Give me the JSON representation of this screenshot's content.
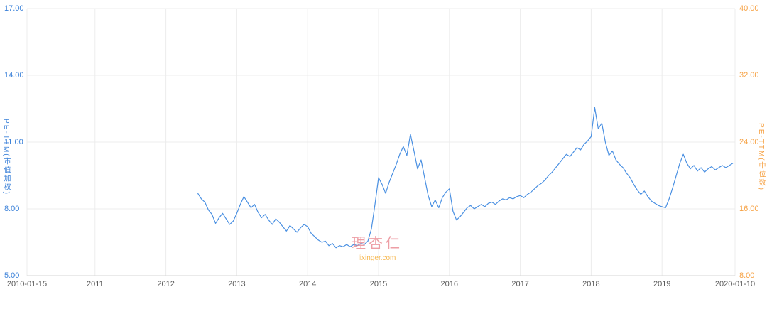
{
  "chart_data": {
    "type": "line",
    "title": "",
    "grid": true,
    "grid_color": "#ececec",
    "axis_line_color": "#d6d6d6",
    "x_tick_label_color": "#5a5a5a",
    "left_axis": {
      "label": "PE-TTM(市值加权)",
      "color": "#3c82d9",
      "min": 5,
      "max": 17,
      "tick_values": [
        17,
        14,
        11,
        8,
        5
      ],
      "tick_labels": [
        "17.00",
        "14.00",
        "11.00",
        "8.00",
        "5.00"
      ]
    },
    "right_axis": {
      "label": "PE-TTM(中位数)",
      "color": "#f6a143",
      "min": 8,
      "max": 40,
      "tick_values": [
        40,
        32,
        24,
        16,
        8
      ],
      "tick_labels": [
        "40.00",
        "32.00",
        "24.00",
        "16.00",
        "8.00"
      ]
    },
    "x_axis": {
      "min": 2010.04,
      "max": 2020.03,
      "tick_values": [
        2010.04,
        2011,
        2012,
        2013,
        2014,
        2015,
        2016,
        2017,
        2018,
        2019,
        2020.03
      ],
      "tick_labels": [
        "2010-01-15",
        "2011",
        "2012",
        "2013",
        "2014",
        "2015",
        "2016",
        "2017",
        "2018",
        "2019",
        "2020-01-10"
      ]
    },
    "series": [
      {
        "name": "PE-TTM(市值加权)",
        "color": "#4a90e2",
        "axis": "left",
        "x_start": 2012.45,
        "x_step": 0.05,
        "y": [
          8.7,
          8.45,
          8.3,
          7.95,
          7.75,
          7.35,
          7.6,
          7.8,
          7.55,
          7.3,
          7.45,
          7.8,
          8.2,
          8.55,
          8.3,
          8.05,
          8.2,
          7.85,
          7.6,
          7.75,
          7.5,
          7.3,
          7.55,
          7.4,
          7.2,
          7.0,
          7.25,
          7.1,
          6.95,
          7.15,
          7.3,
          7.2,
          6.9,
          6.75,
          6.6,
          6.5,
          6.55,
          6.35,
          6.45,
          6.25,
          6.35,
          6.3,
          6.4,
          6.3,
          6.4,
          6.35,
          6.45,
          6.4,
          6.55,
          7.1,
          8.2,
          9.4,
          9.1,
          8.7,
          9.2,
          9.6,
          10.0,
          10.45,
          10.8,
          10.4,
          11.35,
          10.6,
          9.8,
          10.2,
          9.4,
          8.6,
          8.1,
          8.4,
          8.05,
          8.5,
          8.75,
          8.9,
          7.9,
          7.5,
          7.65,
          7.85,
          8.05,
          8.15,
          8.0,
          8.1,
          8.2,
          8.1,
          8.25,
          8.3,
          8.2,
          8.35,
          8.45,
          8.4,
          8.5,
          8.45,
          8.55,
          8.6,
          8.5,
          8.65,
          8.75,
          8.9,
          9.05,
          9.15,
          9.3,
          9.5,
          9.65,
          9.85,
          10.05,
          10.25,
          10.45,
          10.35,
          10.55,
          10.75,
          10.65,
          10.9,
          11.05,
          11.25,
          12.55,
          11.6,
          11.85,
          11.0,
          10.4,
          10.6,
          10.2,
          10.0,
          9.85,
          9.6,
          9.4,
          9.1,
          8.85,
          8.65,
          8.8,
          8.55,
          8.35,
          8.25,
          8.15,
          8.1,
          8.05,
          8.45,
          8.95,
          9.5,
          10.05,
          10.45,
          10.05,
          9.8,
          9.95,
          9.7,
          9.85,
          9.65,
          9.8,
          9.9,
          9.75,
          9.85,
          9.95,
          9.85,
          9.95,
          10.05
        ]
      }
    ],
    "watermark": {
      "brand": "理杏仁",
      "url": "lixinger.com",
      "brand_color": "#e9868f",
      "url_color": "#f5a623"
    }
  }
}
